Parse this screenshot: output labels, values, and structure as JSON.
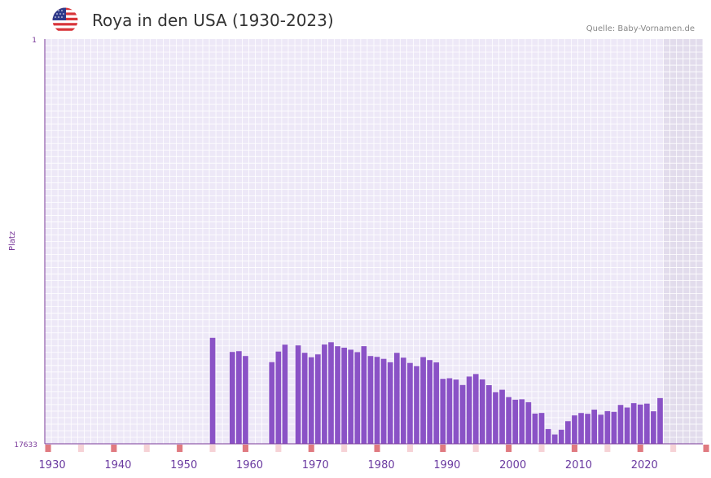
{
  "header": {
    "title": "Roya in den USA (1930-2023)",
    "source": "Quelle: Baby-Vornamen.de",
    "flag": "usa-flag-icon"
  },
  "colors": {
    "bar": "#8a52c6",
    "plot_bg": "#ede8f7",
    "future_bg": "#e2dcec",
    "axis": "#7a3a9a",
    "tick_text": "#6a3aa0",
    "decade_marker": "#e07a80",
    "half_decade_marker": "#f6d2d6"
  },
  "chart_data": {
    "type": "bar",
    "title": "Roya in den USA (1930-2023)",
    "xlabel": "",
    "ylabel": "Platz",
    "y_axis_inverted": true,
    "ylim": [
      1,
      17633
    ],
    "ytick_labels": [
      "1",
      "17633"
    ],
    "xlim": [
      1929,
      2029
    ],
    "xtick_values": [
      1930,
      1940,
      1950,
      1960,
      1970,
      1980,
      1990,
      2000,
      2010,
      2020
    ],
    "xtick_labels": [
      "1930",
      "1940",
      "1950",
      "1960",
      "1970",
      "1980",
      "1990",
      "2000",
      "2010",
      "2020"
    ],
    "shaded_future_from": 2023,
    "grid": true,
    "years": [
      1954,
      1957,
      1958,
      1959,
      1963,
      1964,
      1965,
      1967,
      1968,
      1969,
      1970,
      1971,
      1972,
      1973,
      1974,
      1975,
      1976,
      1977,
      1978,
      1979,
      1980,
      1981,
      1982,
      1983,
      1984,
      1985,
      1986,
      1987,
      1988,
      1989,
      1990,
      1991,
      1992,
      1993,
      1994,
      1995,
      1996,
      1997,
      1998,
      1999,
      2000,
      2001,
      2002,
      2003,
      2004,
      2005,
      2006,
      2007,
      2008,
      2009,
      2010,
      2011,
      2012,
      2013,
      2014,
      2015,
      2016,
      2017,
      2018,
      2019,
      2020,
      2021,
      2022
    ],
    "values": [
      13015,
      13632,
      13597,
      13809,
      14076,
      13614,
      13315,
      13347,
      13667,
      13862,
      13738,
      13308,
      13209,
      13382,
      13446,
      13533,
      13640,
      13380,
      13809,
      13845,
      13932,
      14081,
      13669,
      13880,
      14111,
      14247,
      13855,
      13986,
      14087,
      14802,
      14778,
      14834,
      15071,
      14703,
      14594,
      14826,
      15079,
      15382,
      15278,
      15599,
      15713,
      15694,
      15822,
      16317,
      16290,
      16992,
      17227,
      17022,
      16648,
      16396,
      16292,
      16327,
      16145,
      16365,
      16210,
      16241,
      15939,
      16054,
      15863,
      15922,
      15883,
      16217,
      15641
    ]
  }
}
